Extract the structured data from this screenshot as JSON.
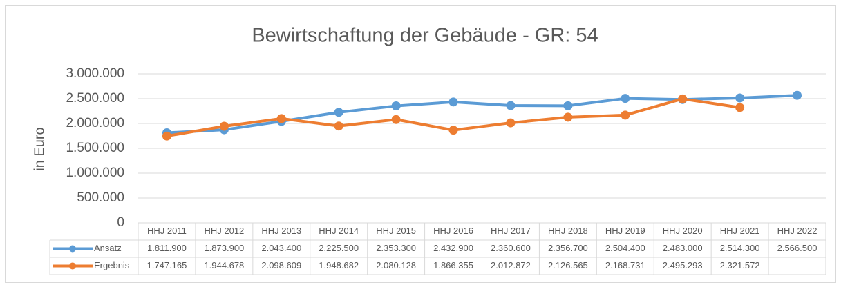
{
  "chart_data": {
    "type": "line",
    "title": "Bewirtschaftung der Gebäude - GR: 54",
    "y_label": "in Euro",
    "categories": [
      "HHJ 2011",
      "HHJ 2012",
      "HHJ 2013",
      "HHJ 2014",
      "HHJ 2015",
      "HHJ 2016",
      "HHJ 2017",
      "HHJ 2018",
      "HHJ 2019",
      "HHJ 2020",
      "HHJ 2021",
      "HHJ 2022"
    ],
    "series": [
      {
        "name": "Ansatz",
        "color": "#5b9bd5",
        "values": [
          1811900,
          1873900,
          2043400,
          2225500,
          2353300,
          2432900,
          2360600,
          2356700,
          2504400,
          2483000,
          2514300,
          2566500
        ],
        "value_labels": [
          "1.811.900",
          "1.873.900",
          "2.043.400",
          "2.225.500",
          "2.353.300",
          "2.432.900",
          "2.360.600",
          "2.356.700",
          "2.504.400",
          "2.483.000",
          "2.514.300",
          "2.566.500"
        ]
      },
      {
        "name": "Ergebnis",
        "color": "#ed7d31",
        "values": [
          1747165,
          1944678,
          2098609,
          1948682,
          2080128,
          1866355,
          2012872,
          2126565,
          2168731,
          2495293,
          2321572,
          null
        ],
        "value_labels": [
          "1.747.165",
          "1.944.678",
          "2.098.609",
          "1.948.682",
          "2.080.128",
          "1.866.355",
          "2.012.872",
          "2.126.565",
          "2.168.731",
          "2.495.293",
          "2.321.572",
          null
        ]
      }
    ],
    "ylim": [
      0,
      3000000
    ],
    "yticks": [
      0,
      {
        "value": 500000,
        "label": "500.000"
      },
      {
        "value": 1000000,
        "label": "1.000.000"
      },
      {
        "value": 1500000,
        "label": "1.500.000"
      },
      {
        "value": 2000000,
        "label": "2.000.000"
      },
      {
        "value": 2500000,
        "label": "2.500.000"
      },
      {
        "value": 3000000,
        "label": "3.000.000"
      }
    ],
    "grid": true,
    "legend": "data-table"
  }
}
